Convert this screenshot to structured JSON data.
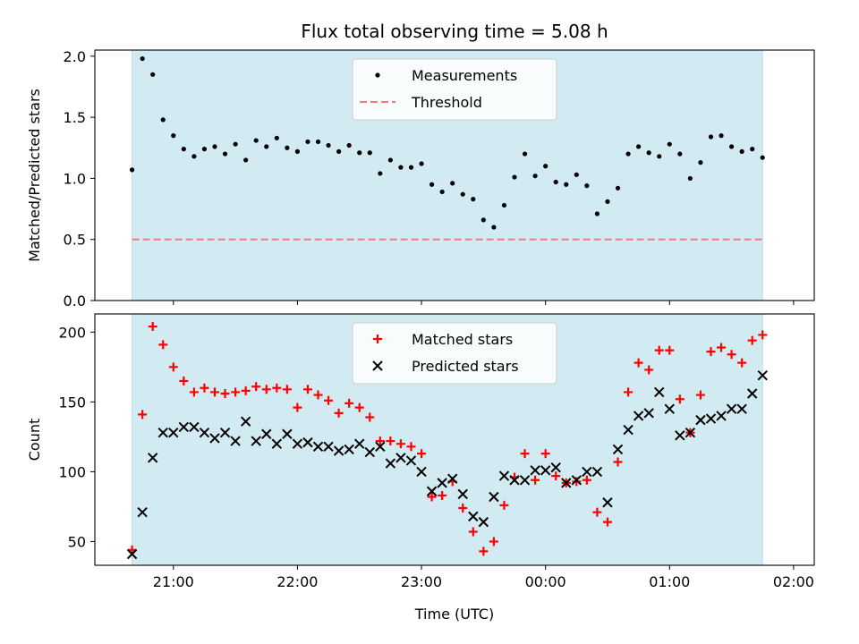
{
  "figure": {
    "title": "Flux total observing time = 5.08 h"
  },
  "colors": {
    "shade": "#add8e6",
    "measurement": "#000000",
    "threshold": "#f08080",
    "matched": "#ff0000",
    "predicted": "#000000"
  },
  "chart_data": [
    {
      "type": "scatter",
      "ylabel": "Matched/Predicted stars",
      "ylim": [
        0.0,
        2.05
      ],
      "xlim": [
        "20:22",
        "02:10"
      ],
      "yticks": [
        "0.0",
        "0.5",
        "1.0",
        "1.5",
        "2.0"
      ],
      "grid": false,
      "legend_position": "top-center",
      "observing_window": [
        "20:40",
        "01:45"
      ],
      "threshold": {
        "name": "Threshold",
        "value": 0.5
      },
      "series": [
        {
          "name": "Measurements",
          "marker": "dot",
          "x": [
            "20:40",
            "20:45",
            "20:50",
            "20:55",
            "21:00",
            "21:05",
            "21:10",
            "21:15",
            "21:20",
            "21:25",
            "21:30",
            "21:35",
            "21:40",
            "21:45",
            "21:50",
            "21:55",
            "22:00",
            "22:05",
            "22:10",
            "22:15",
            "22:20",
            "22:25",
            "22:30",
            "22:35",
            "22:40",
            "22:45",
            "22:50",
            "22:55",
            "23:00",
            "23:05",
            "23:10",
            "23:15",
            "23:20",
            "23:25",
            "23:30",
            "23:35",
            "23:40",
            "23:45",
            "23:50",
            "23:55",
            "00:00",
            "00:05",
            "00:10",
            "00:15",
            "00:20",
            "00:25",
            "00:30",
            "00:35",
            "00:40",
            "00:45",
            "00:50",
            "00:55",
            "01:00",
            "01:05",
            "01:10",
            "01:15",
            "01:20",
            "01:25",
            "01:30",
            "01:35",
            "01:40",
            "01:45"
          ],
          "y": [
            1.07,
            1.98,
            1.85,
            1.48,
            1.35,
            1.24,
            1.18,
            1.24,
            1.26,
            1.2,
            1.28,
            1.15,
            1.31,
            1.26,
            1.33,
            1.25,
            1.22,
            1.3,
            1.3,
            1.27,
            1.22,
            1.27,
            1.21,
            1.21,
            1.04,
            1.15,
            1.09,
            1.09,
            1.12,
            0.95,
            0.89,
            0.96,
            0.87,
            0.83,
            0.66,
            0.6,
            0.78,
            1.01,
            1.2,
            1.02,
            1.1,
            0.97,
            0.95,
            1.03,
            0.94,
            0.71,
            0.81,
            0.92,
            1.2,
            1.26,
            1.21,
            1.18,
            1.28,
            1.2,
            1.0,
            1.13,
            1.34,
            1.35,
            1.26,
            1.22,
            1.24,
            1.17
          ]
        }
      ]
    },
    {
      "type": "scatter",
      "ylabel": "Count",
      "xlabel": "Time (UTC)",
      "ylim": [
        33,
        213
      ],
      "xlim": [
        "20:22",
        "02:10"
      ],
      "xticks": [
        "21:00",
        "22:00",
        "23:00",
        "00:00",
        "01:00",
        "02:00"
      ],
      "yticks": [
        "50",
        "100",
        "150",
        "200"
      ],
      "grid": false,
      "legend_position": "top-center",
      "observing_window": [
        "20:40",
        "01:45"
      ],
      "series": [
        {
          "name": "Matched stars",
          "marker": "plus",
          "x": [
            "20:40",
            "20:45",
            "20:50",
            "20:55",
            "21:00",
            "21:05",
            "21:10",
            "21:15",
            "21:20",
            "21:25",
            "21:30",
            "21:35",
            "21:40",
            "21:45",
            "21:50",
            "21:55",
            "22:00",
            "22:05",
            "22:10",
            "22:15",
            "22:20",
            "22:25",
            "22:30",
            "22:35",
            "22:40",
            "22:45",
            "22:50",
            "22:55",
            "23:00",
            "23:05",
            "23:10",
            "23:15",
            "23:20",
            "23:25",
            "23:30",
            "23:35",
            "23:40",
            "23:45",
            "23:50",
            "23:55",
            "00:00",
            "00:05",
            "00:10",
            "00:15",
            "00:20",
            "00:25",
            "00:30",
            "00:35",
            "00:40",
            "00:45",
            "00:50",
            "00:55",
            "01:00",
            "01:05",
            "01:10",
            "01:15",
            "01:20",
            "01:25",
            "01:30",
            "01:35",
            "01:40",
            "01:45"
          ],
          "y": [
            44,
            141,
            204,
            191,
            175,
            165,
            157,
            160,
            157,
            156,
            157,
            158,
            161,
            159,
            160,
            159,
            146,
            159,
            155,
            151,
            142,
            149,
            146,
            139,
            122,
            122,
            120,
            118,
            113,
            82,
            83,
            93,
            74,
            57,
            43,
            50,
            76,
            96,
            113,
            94,
            113,
            97,
            92,
            93,
            94,
            71,
            64,
            107,
            157,
            178,
            173,
            187,
            187,
            152,
            128,
            155,
            186,
            189,
            184,
            178,
            194,
            198
          ]
        },
        {
          "name": "Predicted stars",
          "marker": "x",
          "x": [
            "20:40",
            "20:45",
            "20:50",
            "20:55",
            "21:00",
            "21:05",
            "21:10",
            "21:15",
            "21:20",
            "21:25",
            "21:30",
            "21:35",
            "21:40",
            "21:45",
            "21:50",
            "21:55",
            "22:00",
            "22:05",
            "22:10",
            "22:15",
            "22:20",
            "22:25",
            "22:30",
            "22:35",
            "22:40",
            "22:45",
            "22:50",
            "22:55",
            "23:00",
            "23:05",
            "23:10",
            "23:15",
            "23:20",
            "23:25",
            "23:30",
            "23:35",
            "23:40",
            "23:45",
            "23:50",
            "23:55",
            "00:00",
            "00:05",
            "00:10",
            "00:15",
            "00:20",
            "00:25",
            "00:30",
            "00:35",
            "00:40",
            "00:45",
            "00:50",
            "00:55",
            "01:00",
            "01:05",
            "01:10",
            "01:15",
            "01:20",
            "01:25",
            "01:30",
            "01:35",
            "01:40",
            "01:45"
          ],
          "y": [
            41,
            71,
            110,
            128,
            128,
            132,
            132,
            128,
            124,
            128,
            122,
            136,
            122,
            127,
            120,
            127,
            120,
            121,
            118,
            118,
            115,
            116,
            120,
            114,
            118,
            106,
            110,
            108,
            100,
            86,
            92,
            95,
            84,
            68,
            64,
            82,
            97,
            94,
            94,
            101,
            101,
            103,
            92,
            94,
            100,
            100,
            78,
            116,
            130,
            140,
            142,
            157,
            145,
            126,
            128,
            137,
            138,
            140,
            145,
            145,
            156,
            169
          ]
        }
      ]
    }
  ]
}
